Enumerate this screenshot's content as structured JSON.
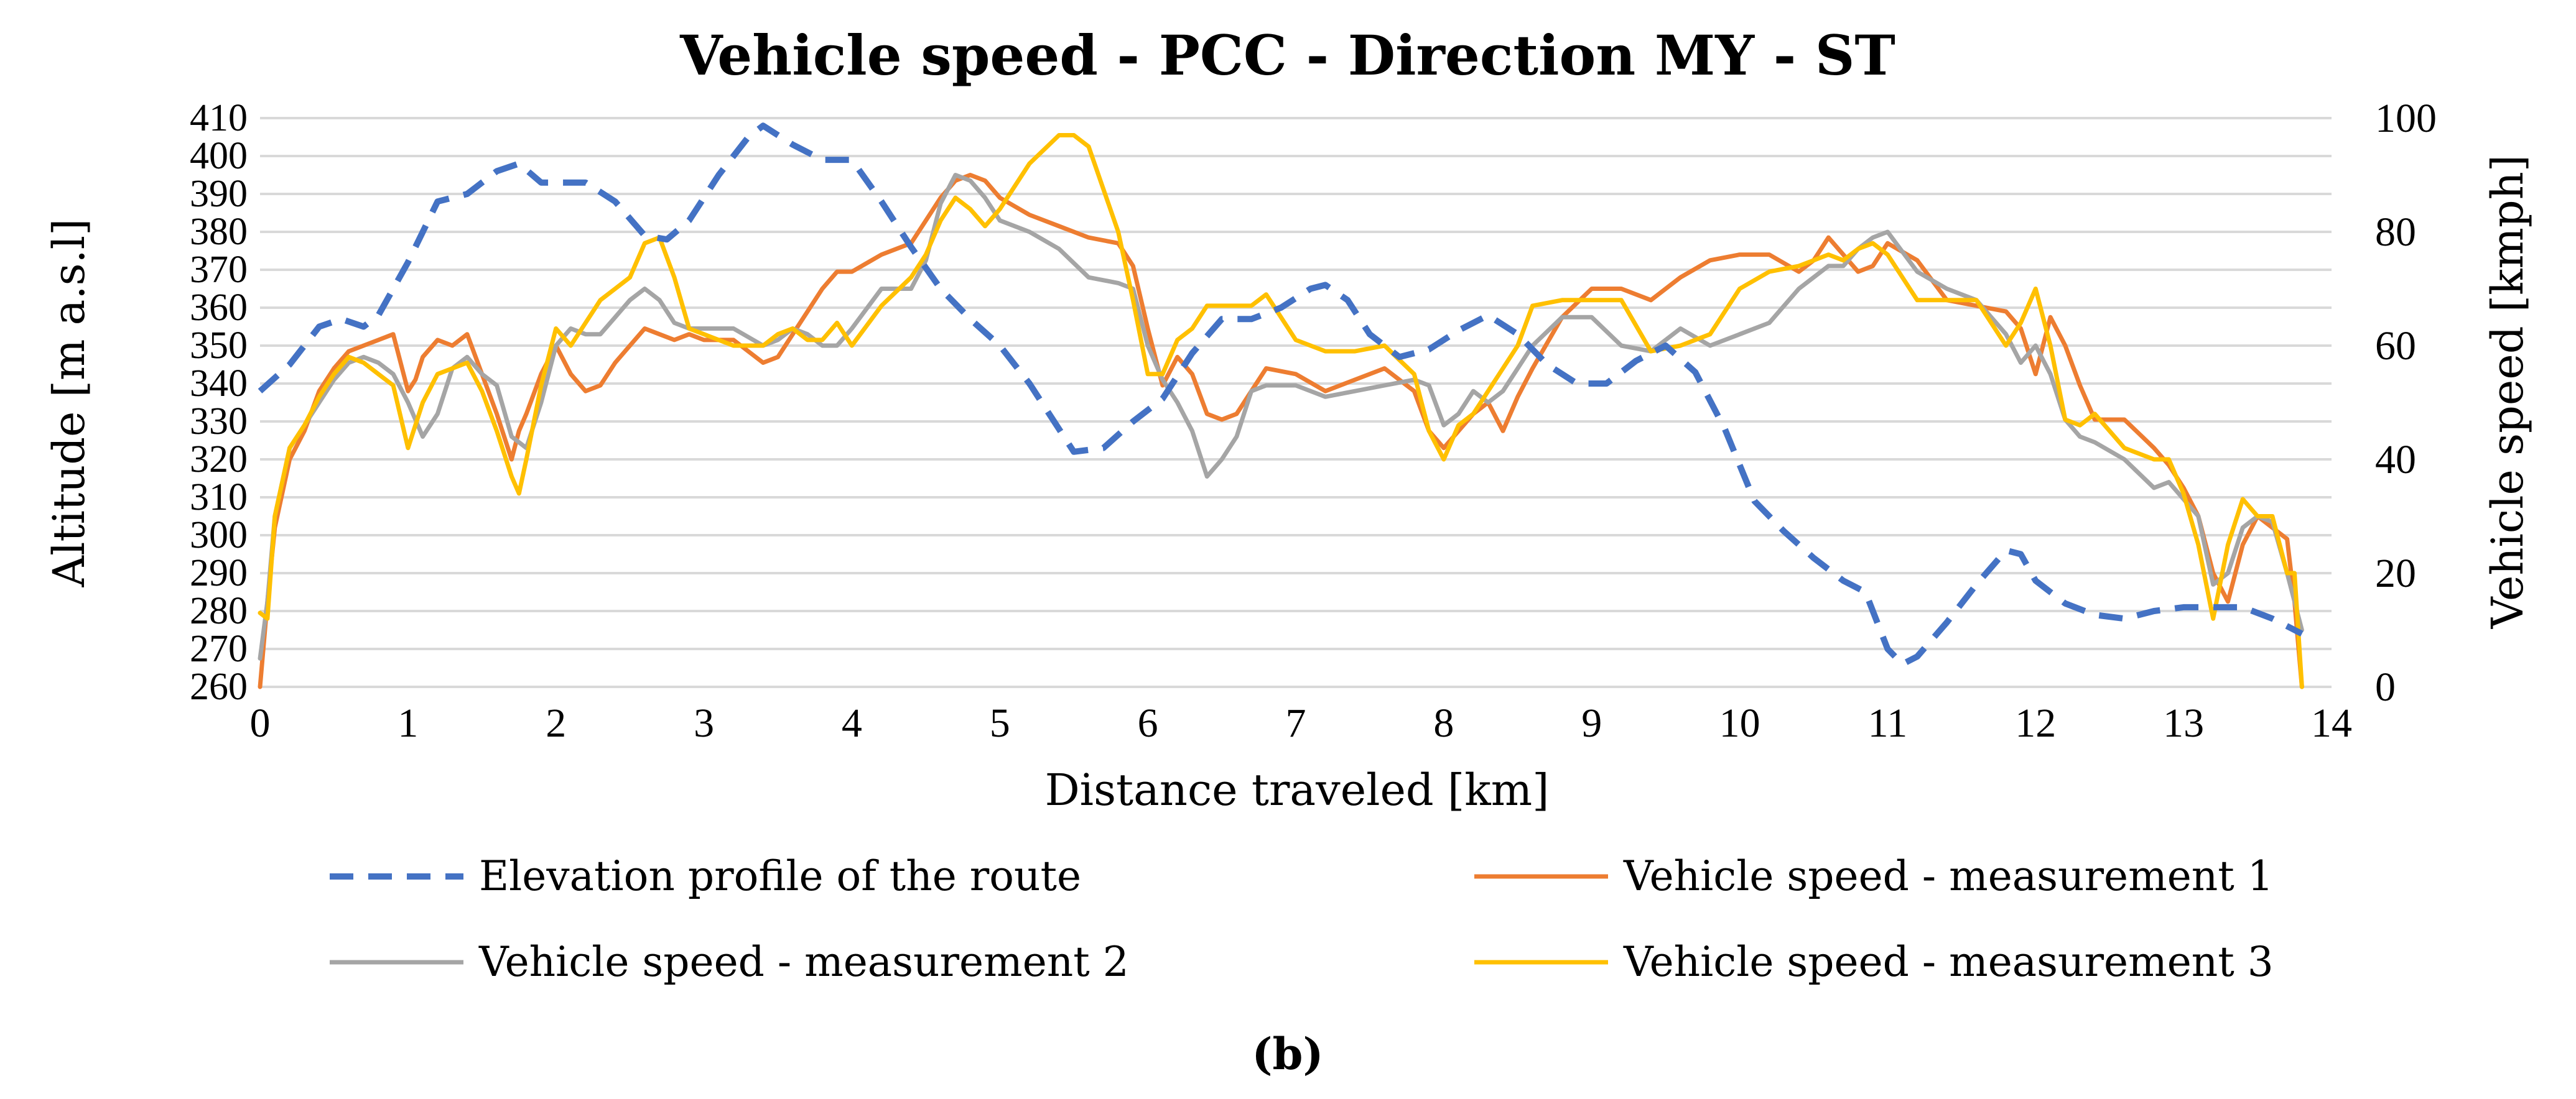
{
  "chart_data": {
    "type": "line",
    "title": "Vehicle speed - PCC - Direction MY - ST",
    "xlabel": "Distance traveled [km]",
    "ylabel_left": "Altitude [m a.s.l]",
    "ylabel_right": "Vehicle speed [kmph]",
    "xlim": [
      0,
      14
    ],
    "ylim_left": [
      260,
      410
    ],
    "ylim_right": [
      0,
      100
    ],
    "x_ticks": [
      0,
      1,
      2,
      3,
      4,
      5,
      6,
      7,
      8,
      9,
      10,
      11,
      12,
      13,
      14
    ],
    "y_ticks_left": [
      260,
      270,
      280,
      290,
      300,
      310,
      320,
      330,
      340,
      350,
      360,
      370,
      380,
      390,
      400,
      410
    ],
    "y_ticks_right": [
      0,
      20,
      40,
      60,
      80,
      100
    ],
    "grid": true,
    "legend_position": "bottom",
    "caption": "(b)",
    "series": [
      {
        "name": "Elevation profile of the route",
        "axis": "left",
        "color": "#4472C4",
        "style": "dashed",
        "x": [
          0,
          0.2,
          0.4,
          0.55,
          0.7,
          0.8,
          1.0,
          1.2,
          1.4,
          1.6,
          1.75,
          1.9,
          2.0,
          2.2,
          2.4,
          2.6,
          2.75,
          2.9,
          3.1,
          3.3,
          3.4,
          3.6,
          3.8,
          4.0,
          4.2,
          4.4,
          4.6,
          4.8,
          5.0,
          5.2,
          5.4,
          5.5,
          5.7,
          5.9,
          6.1,
          6.3,
          6.5,
          6.7,
          6.9,
          7.1,
          7.2,
          7.35,
          7.5,
          7.7,
          7.9,
          8.1,
          8.3,
          8.5,
          8.7,
          8.9,
          9.1,
          9.3,
          9.5,
          9.7,
          9.9,
          10.1,
          10.3,
          10.5,
          10.7,
          10.85,
          11.0,
          11.1,
          11.2,
          11.4,
          11.6,
          11.8,
          11.9,
          12.0,
          12.2,
          12.4,
          12.6,
          12.8,
          13.0,
          13.2,
          13.4,
          13.6,
          13.8
        ],
        "values": [
          338,
          345,
          355,
          357,
          355,
          358,
          372,
          388,
          390,
          396,
          398,
          393,
          393,
          393,
          388,
          379,
          378,
          383,
          395,
          405,
          408,
          403,
          399,
          399,
          388,
          376,
          365,
          357,
          350,
          340,
          328,
          322,
          323,
          330,
          336,
          348,
          357,
          357,
          360,
          365,
          366,
          362,
          353,
          347,
          349,
          354,
          358,
          353,
          345,
          340,
          340,
          346,
          350,
          343,
          328,
          309,
          301,
          294,
          288,
          285,
          270,
          266,
          268,
          277,
          287,
          296,
          295,
          288,
          282,
          279,
          278,
          280,
          281,
          281,
          281,
          278,
          274
        ]
      },
      {
        "name": "Vehicle speed - measurement 1",
        "axis": "right",
        "color": "#ED7D31",
        "style": "solid",
        "x": [
          0,
          0.05,
          0.1,
          0.2,
          0.3,
          0.4,
          0.5,
          0.6,
          0.7,
          0.8,
          0.9,
          1.0,
          1.05,
          1.1,
          1.2,
          1.3,
          1.4,
          1.5,
          1.6,
          1.7,
          1.75,
          1.8,
          1.9,
          2.0,
          2.1,
          2.2,
          2.3,
          2.4,
          2.5,
          2.6,
          2.7,
          2.8,
          2.9,
          3.0,
          3.2,
          3.4,
          3.5,
          3.6,
          3.7,
          3.8,
          3.9,
          4.0,
          4.2,
          4.4,
          4.5,
          4.6,
          4.7,
          4.8,
          4.9,
          5.0,
          5.2,
          5.4,
          5.6,
          5.8,
          5.9,
          6.0,
          6.1,
          6.2,
          6.3,
          6.4,
          6.5,
          6.6,
          6.7,
          6.8,
          7.0,
          7.2,
          7.4,
          7.6,
          7.8,
          7.9,
          8.0,
          8.1,
          8.2,
          8.3,
          8.4,
          8.5,
          8.6,
          8.8,
          9.0,
          9.2,
          9.4,
          9.6,
          9.8,
          10.0,
          10.2,
          10.4,
          10.5,
          10.6,
          10.7,
          10.8,
          10.9,
          11.0,
          11.2,
          11.4,
          11.6,
          11.8,
          11.9,
          12.0,
          12.1,
          12.2,
          12.3,
          12.4,
          12.6,
          12.8,
          12.9,
          13.0,
          13.1,
          13.2,
          13.3,
          13.4,
          13.5,
          13.6,
          13.7,
          13.75,
          13.8
        ],
        "values": [
          0,
          15,
          28,
          40,
          45,
          52,
          56,
          59,
          60,
          61,
          62,
          52,
          54,
          58,
          61,
          60,
          62,
          55,
          48,
          40,
          45,
          48,
          55,
          60,
          55,
          52,
          53,
          57,
          60,
          63,
          62,
          61,
          62,
          61,
          61,
          57,
          58,
          62,
          66,
          70,
          73,
          73,
          76,
          78,
          82,
          86,
          89,
          90,
          89,
          86,
          83,
          81,
          79,
          78,
          74,
          63,
          53,
          58,
          55,
          48,
          47,
          48,
          52,
          56,
          55,
          52,
          54,
          56,
          52,
          45,
          42,
          45,
          48,
          50,
          45,
          51,
          56,
          65,
          70,
          70,
          68,
          72,
          75,
          76,
          76,
          73,
          75,
          79,
          76,
          73,
          74,
          78,
          75,
          68,
          67,
          66,
          63,
          55,
          65,
          60,
          53,
          47,
          47,
          42,
          39,
          35,
          30,
          20,
          15,
          25,
          30,
          28,
          26,
          15,
          0
        ],
        "note": "values on right axis (kmph)"
      },
      {
        "name": "Vehicle speed - measurement 2",
        "axis": "right",
        "color": "#A5A5A5",
        "style": "solid",
        "x": [
          0,
          0.05,
          0.1,
          0.2,
          0.3,
          0.4,
          0.5,
          0.6,
          0.7,
          0.8,
          0.9,
          1.0,
          1.1,
          1.2,
          1.3,
          1.4,
          1.5,
          1.6,
          1.7,
          1.8,
          1.9,
          2.0,
          2.1,
          2.2,
          2.3,
          2.4,
          2.5,
          2.6,
          2.7,
          2.8,
          2.9,
          3.0,
          3.2,
          3.4,
          3.5,
          3.6,
          3.7,
          3.8,
          3.9,
          4.0,
          4.2,
          4.4,
          4.5,
          4.6,
          4.7,
          4.8,
          4.9,
          5.0,
          5.2,
          5.4,
          5.6,
          5.8,
          5.9,
          6.0,
          6.1,
          6.2,
          6.3,
          6.4,
          6.5,
          6.6,
          6.7,
          6.8,
          7.0,
          7.2,
          7.4,
          7.6,
          7.8,
          7.9,
          8.0,
          8.1,
          8.2,
          8.3,
          8.4,
          8.5,
          8.6,
          8.8,
          9.0,
          9.2,
          9.4,
          9.6,
          9.8,
          10.0,
          10.2,
          10.4,
          10.5,
          10.6,
          10.7,
          10.8,
          10.9,
          11.0,
          11.2,
          11.4,
          11.6,
          11.8,
          11.9,
          12.0,
          12.1,
          12.2,
          12.3,
          12.4,
          12.6,
          12.8,
          12.9,
          13.0,
          13.1,
          13.2,
          13.3,
          13.4,
          13.5,
          13.6,
          13.7,
          13.75,
          13.8
        ],
        "values": [
          5,
          15,
          30,
          42,
          46,
          50,
          54,
          57,
          58,
          57,
          55,
          50,
          44,
          48,
          56,
          58,
          55,
          53,
          44,
          42,
          50,
          60,
          63,
          62,
          62,
          65,
          68,
          70,
          68,
          64,
          63,
          63,
          63,
          60,
          61,
          63,
          62,
          60,
          60,
          63,
          70,
          70,
          75,
          85,
          90,
          89,
          86,
          82,
          80,
          77,
          72,
          71,
          70,
          60,
          54,
          50,
          45,
          37,
          40,
          44,
          52,
          53,
          53,
          51,
          52,
          53,
          54,
          53,
          46,
          48,
          52,
          50,
          52,
          56,
          60,
          65,
          65,
          60,
          59,
          63,
          60,
          62,
          64,
          70,
          72,
          74,
          74,
          77,
          79,
          80,
          73,
          70,
          68,
          62,
          57,
          60,
          55,
          47,
          44,
          43,
          40,
          35,
          36,
          33,
          30,
          18,
          20,
          28,
          30,
          29,
          20,
          15,
          10
        ],
        "note": "values on right axis (kmph)"
      },
      {
        "name": "Vehicle speed - measurement 3",
        "axis": "right",
        "color": "#FFC000",
        "style": "solid",
        "x": [
          0,
          0.05,
          0.1,
          0.2,
          0.3,
          0.4,
          0.5,
          0.6,
          0.7,
          0.8,
          0.9,
          1.0,
          1.1,
          1.2,
          1.3,
          1.4,
          1.5,
          1.6,
          1.7,
          1.75,
          1.8,
          1.9,
          2.0,
          2.1,
          2.2,
          2.3,
          2.4,
          2.5,
          2.6,
          2.7,
          2.8,
          2.9,
          3.0,
          3.2,
          3.4,
          3.5,
          3.6,
          3.7,
          3.8,
          3.9,
          4.0,
          4.2,
          4.4,
          4.5,
          4.6,
          4.7,
          4.8,
          4.9,
          5.0,
          5.2,
          5.4,
          5.5,
          5.6,
          5.8,
          5.9,
          6.0,
          6.1,
          6.2,
          6.3,
          6.4,
          6.5,
          6.6,
          6.7,
          6.8,
          7.0,
          7.2,
          7.4,
          7.6,
          7.8,
          7.9,
          8.0,
          8.1,
          8.2,
          8.3,
          8.4,
          8.5,
          8.6,
          8.8,
          9.0,
          9.2,
          9.4,
          9.6,
          9.8,
          10.0,
          10.2,
          10.4,
          10.5,
          10.6,
          10.7,
          10.8,
          10.9,
          11.0,
          11.2,
          11.4,
          11.6,
          11.8,
          11.9,
          12.0,
          12.1,
          12.2,
          12.3,
          12.4,
          12.6,
          12.8,
          12.9,
          13.0,
          13.1,
          13.2,
          13.3,
          13.4,
          13.5,
          13.6,
          13.7,
          13.75,
          13.8
        ],
        "values": [
          13,
          12,
          30,
          42,
          46,
          51,
          55,
          58,
          57,
          55,
          53,
          42,
          50,
          55,
          56,
          57,
          52,
          45,
          37,
          34,
          40,
          53,
          63,
          60,
          64,
          68,
          70,
          72,
          78,
          79,
          72,
          63,
          62,
          60,
          60,
          62,
          63,
          61,
          61,
          64,
          60,
          67,
          72,
          76,
          82,
          86,
          84,
          81,
          84,
          92,
          97,
          97,
          95,
          80,
          68,
          55,
          55,
          61,
          63,
          67,
          67,
          67,
          67,
          69,
          61,
          59,
          59,
          60,
          55,
          45,
          40,
          46,
          48,
          52,
          56,
          60,
          67,
          68,
          68,
          68,
          59,
          60,
          62,
          70,
          73,
          74,
          75,
          76,
          75,
          77,
          78,
          76,
          68,
          68,
          68,
          60,
          64,
          70,
          60,
          47,
          46,
          48,
          42,
          40,
          40,
          34,
          25,
          12,
          25,
          33,
          30,
          30,
          20,
          20,
          0
        ],
        "note": "values on right axis (kmph)"
      }
    ]
  }
}
